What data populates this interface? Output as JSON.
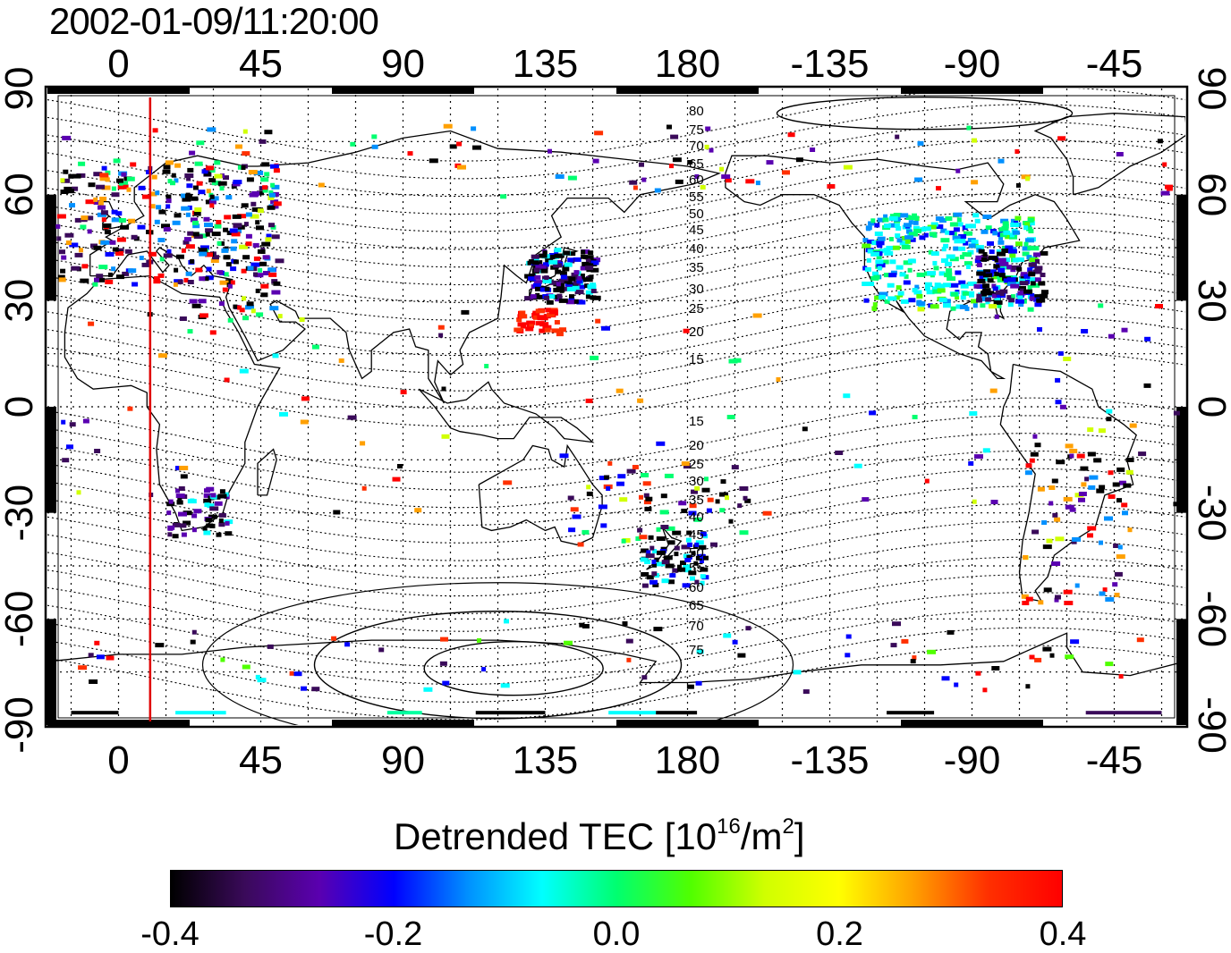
{
  "title": "2002-01-09/11:20:00",
  "map": {
    "top_ticks": [
      "0",
      "45",
      "90",
      "135",
      "180",
      "-135",
      "-90",
      "-45"
    ],
    "bottom_ticks": [
      "0",
      "45",
      "90",
      "135",
      "180",
      "-135",
      "-90",
      "-45"
    ],
    "left_ticks": [
      "90",
      "60",
      "30",
      "0",
      "-30",
      "-60",
      "-90"
    ],
    "right_ticks": [
      "90",
      "60",
      "30",
      "0",
      "-30",
      "-60",
      "-90"
    ],
    "lon_values": [
      0,
      45,
      90,
      135,
      180,
      225,
      270,
      315
    ],
    "lat_values": [
      90,
      60,
      30,
      0,
      -30,
      -60,
      -90
    ],
    "lon_range": [
      -22.5,
      337.5
    ],
    "lat_range": [
      -90,
      90
    ],
    "terminator_longitude": 10,
    "terminator_color": "#e00000",
    "north_mlat_labels": [
      "80",
      "75",
      "70",
      "65",
      "60",
      "55",
      "50",
      "45",
      "40",
      "35",
      "30",
      "25",
      "20",
      "15"
    ],
    "south_mlat_labels": [
      "15",
      "20",
      "25",
      "30",
      "35",
      "40",
      "45",
      "50",
      "55",
      "60",
      "65",
      "70",
      "75"
    ]
  },
  "colorbar": {
    "title_text": "Detrended TEC  [10",
    "title_exp": "16",
    "title_mid": "/m",
    "title_exp2": "2",
    "title_end": "]",
    "min": -0.4,
    "max": 0.4,
    "tick_labels": [
      "-0.4",
      "-0.2",
      "0.0",
      "0.2",
      "0.4"
    ],
    "colors": [
      "#000000",
      "#3a0a5a",
      "#5a00b0",
      "#0000ff",
      "#0090ff",
      "#00ffff",
      "#00ff70",
      "#50ff00",
      "#d0ff00",
      "#ffff00",
      "#ffa000",
      "#ff3000",
      "#ff0000"
    ]
  }
}
